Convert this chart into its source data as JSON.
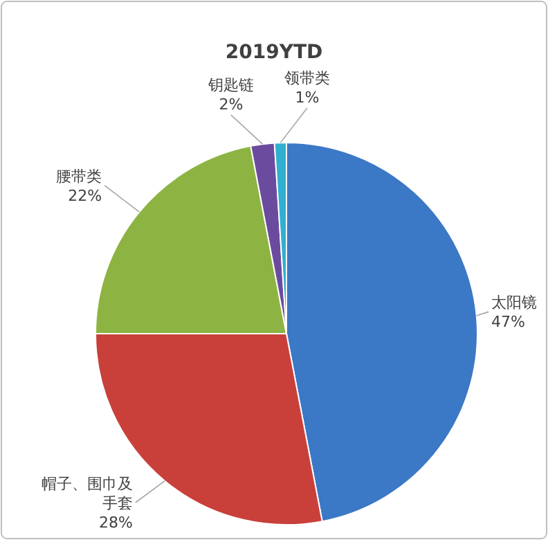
{
  "chart_data": {
    "type": "pie",
    "title": "2019YTD",
    "categories": [
      "太阳镜",
      "帽子、围巾及手套",
      "腰带类",
      "钥匙链",
      "领带类"
    ],
    "values": [
      47,
      28,
      22,
      2,
      1
    ],
    "colors": [
      "#3b78c6",
      "#c9403b",
      "#8db443",
      "#6b4b9e",
      "#31afd1"
    ],
    "value_labels": [
      "47%",
      "28%",
      "22%",
      "2%",
      "1%"
    ],
    "legend": false
  }
}
